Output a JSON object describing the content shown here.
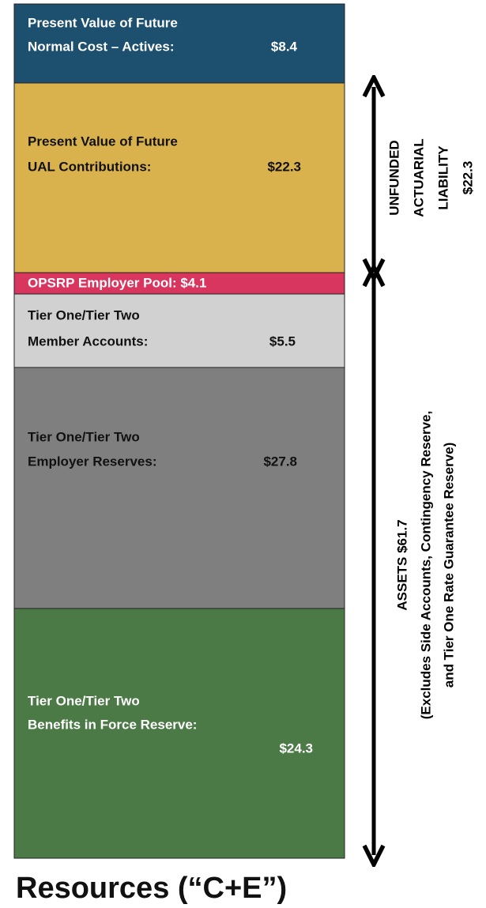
{
  "segments": [
    {
      "label": [
        "Present Value of Future",
        "Normal Cost – Actives:"
      ],
      "value": "$8.4"
    },
    {
      "label": [
        "Present Value of Future",
        "UAL Contributions:"
      ],
      "value": "$22.3"
    },
    {
      "label": [
        "OPSRP Employer Pool: $4.1"
      ]
    },
    {
      "label": [
        "Tier One/Tier Two",
        "Member Accounts:"
      ],
      "value": "$5.5"
    },
    {
      "label": [
        "Tier One/Tier Two",
        "Employer Reserves:"
      ],
      "value": "$27.8"
    },
    {
      "label": [
        "Tier One/Tier Two",
        "Benefits in Force Reserve:"
      ],
      "value": "$24.3"
    }
  ],
  "ual_label": [
    "UNFUNDED",
    "ACTUARIAL",
    "LIABILITY",
    "$22.3"
  ],
  "assets_label": [
    "ASSETS $61.7",
    "(Excludes Side Accounts, Contingency Reserve,",
    "and Tier One Rate Guarantee Reserve)"
  ],
  "title": "Resources (“C+E”)"
}
